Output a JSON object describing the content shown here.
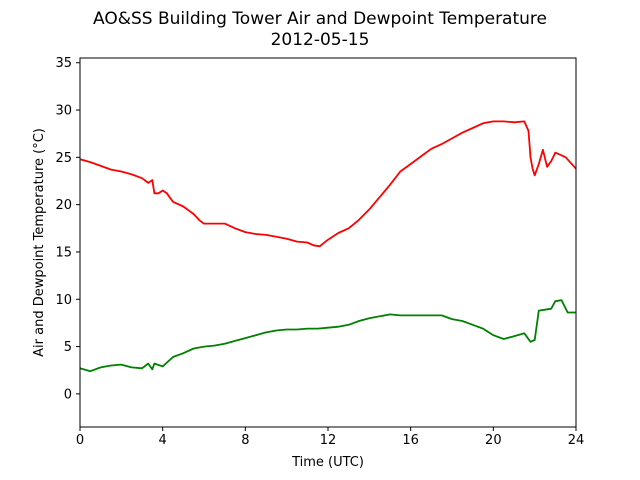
{
  "chart_data": {
    "type": "line",
    "title": "AO&SS Building Tower Air and Dewpoint Temperature",
    "subtitle": "2012-05-15",
    "xlabel": "Time (UTC)",
    "ylabel": "Air and Dewpoint Temperature (°C)",
    "xlim": [
      0,
      24
    ],
    "ylim": [
      -3.5,
      35.5
    ],
    "xticks": [
      0,
      4,
      8,
      12,
      16,
      20,
      24
    ],
    "yticks": [
      0,
      5,
      10,
      15,
      20,
      25,
      30,
      35
    ],
    "grid": false,
    "series": [
      {
        "color": "#ff0000",
        "x": [
          0,
          0.5,
          1,
          1.5,
          2,
          2.5,
          3,
          3.3,
          3.5,
          3.6,
          3.8,
          4,
          4.2,
          4.5,
          5,
          5.5,
          5.8,
          6,
          6.5,
          7,
          7.5,
          8,
          8.5,
          9,
          9.5,
          10,
          10.5,
          11,
          11.3,
          11.6,
          12,
          12.5,
          13,
          13.5,
          14,
          14.5,
          15,
          15.5,
          16,
          16.5,
          17,
          17.5,
          18,
          18.5,
          19,
          19.5,
          20,
          20.5,
          21,
          21.5,
          21.7,
          21.8,
          21.9,
          22,
          22.2,
          22.4,
          22.6,
          22.8,
          23,
          23.5,
          24
        ],
        "y": [
          24.8,
          24.5,
          24.1,
          23.7,
          23.5,
          23.2,
          22.8,
          22.3,
          22.6,
          21.2,
          21.2,
          21.5,
          21.2,
          20.3,
          19.8,
          19.0,
          18.3,
          18.0,
          18.0,
          18.0,
          17.5,
          17.1,
          16.9,
          16.8,
          16.6,
          16.4,
          16.1,
          16.0,
          15.7,
          15.6,
          16.3,
          17.0,
          17.5,
          18.4,
          19.5,
          20.8,
          22.1,
          23.5,
          24.3,
          25.1,
          25.9,
          26.4,
          27.0,
          27.6,
          28.1,
          28.6,
          28.8,
          28.8,
          28.7,
          28.8,
          27.8,
          25.0,
          23.8,
          23.1,
          24.3,
          25.8,
          24.0,
          24.6,
          25.5,
          25.0,
          23.8
        ]
      },
      {
        "color": "#008000",
        "x": [
          0,
          0.5,
          1,
          1.5,
          2,
          2.5,
          3,
          3.3,
          3.5,
          3.6,
          4,
          4.5,
          5,
          5.5,
          6,
          6.5,
          7,
          7.5,
          8,
          8.5,
          9,
          9.5,
          10,
          10.5,
          11,
          11.5,
          12,
          12.5,
          13,
          13.5,
          14,
          14.5,
          15,
          15.5,
          16,
          16.5,
          17,
          17.5,
          18,
          18.5,
          19,
          19.5,
          20,
          20.5,
          21,
          21.5,
          21.8,
          22,
          22.2,
          22.5,
          22.8,
          23,
          23.3,
          23.6,
          24
        ],
        "y": [
          2.7,
          2.4,
          2.8,
          3.0,
          3.1,
          2.8,
          2.7,
          3.2,
          2.6,
          3.2,
          2.9,
          3.9,
          4.3,
          4.8,
          5.0,
          5.1,
          5.3,
          5.6,
          5.9,
          6.2,
          6.5,
          6.7,
          6.8,
          6.8,
          6.9,
          6.9,
          7.0,
          7.1,
          7.3,
          7.7,
          8.0,
          8.2,
          8.4,
          8.3,
          8.3,
          8.3,
          8.3,
          8.3,
          7.9,
          7.7,
          7.3,
          6.9,
          6.2,
          5.8,
          6.1,
          6.4,
          5.5,
          5.7,
          8.8,
          8.9,
          9.0,
          9.8,
          9.9,
          8.6,
          8.6
        ]
      }
    ]
  }
}
